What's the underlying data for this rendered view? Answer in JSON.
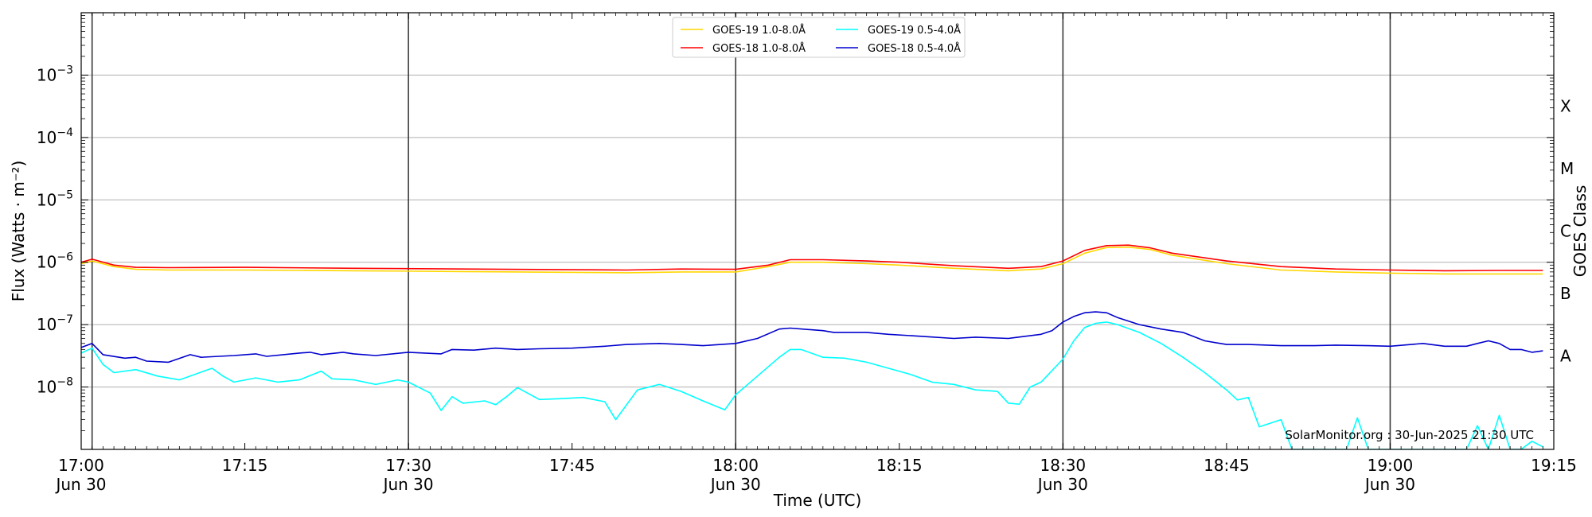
{
  "chart_data": {
    "type": "line",
    "title": "",
    "xlabel": "Time (UTC)",
    "ylabel": "Flux (Watts · m⁻²)",
    "y2label": "GOES Class",
    "yscale": "log",
    "xlim_minutes_after_17_00": [
      0,
      135
    ],
    "ylim": [
      1e-09,
      0.01
    ],
    "grid": "horizontal at decades",
    "legend_placement": "top-center",
    "x_ticks": [
      {
        "minute": 0,
        "label": "17:00",
        "sublabel": "Jun 30"
      },
      {
        "minute": 15,
        "label": "17:15",
        "sublabel": ""
      },
      {
        "minute": 30,
        "label": "17:30",
        "sublabel": "Jun 30"
      },
      {
        "minute": 45,
        "label": "17:45",
        "sublabel": ""
      },
      {
        "minute": 60,
        "label": "18:00",
        "sublabel": "Jun 30"
      },
      {
        "minute": 75,
        "label": "18:15",
        "sublabel": ""
      },
      {
        "minute": 90,
        "label": "18:30",
        "sublabel": "Jun 30"
      },
      {
        "minute": 105,
        "label": "18:45",
        "sublabel": ""
      },
      {
        "minute": 120,
        "label": "19:00",
        "sublabel": "Jun 30"
      },
      {
        "minute": 135,
        "label": "19:15",
        "sublabel": ""
      }
    ],
    "vertical_lines_minutes": [
      1,
      30,
      60,
      90,
      120
    ],
    "y_ticks": [
      {
        "exp": -8,
        "label_base": "10",
        "label_exp": "−8"
      },
      {
        "exp": -7,
        "label_base": "10",
        "label_exp": "−7"
      },
      {
        "exp": -6,
        "label_base": "10",
        "label_exp": "−6"
      },
      {
        "exp": -5,
        "label_base": "10",
        "label_exp": "−5"
      },
      {
        "exp": -4,
        "label_base": "10",
        "label_exp": "−4"
      },
      {
        "exp": -3,
        "label_base": "10",
        "label_exp": "−3"
      }
    ],
    "goes_classes": [
      {
        "label": "A",
        "exp": -7.5
      },
      {
        "label": "B",
        "exp": -6.5
      },
      {
        "label": "C",
        "exp": -5.5
      },
      {
        "label": "M",
        "exp": -4.5
      },
      {
        "label": "X",
        "exp": -3.5
      }
    ],
    "series": [
      {
        "name": "GOES-19 1.0-8.0Å",
        "color": "#ffd700",
        "points": [
          [
            0,
            9.5e-07
          ],
          [
            1,
            1.05e-06
          ],
          [
            3,
            8.5e-07
          ],
          [
            5,
            7.7e-07
          ],
          [
            8,
            7.5e-07
          ],
          [
            15,
            7.5e-07
          ],
          [
            25,
            7.3e-07
          ],
          [
            35,
            7.1e-07
          ],
          [
            45,
            6.9e-07
          ],
          [
            50,
            6.8e-07
          ],
          [
            55,
            7e-07
          ],
          [
            60,
            7e-07
          ],
          [
            63,
            8.5e-07
          ],
          [
            65,
            1e-06
          ],
          [
            68,
            1e-06
          ],
          [
            72,
            9.5e-07
          ],
          [
            75,
            9e-07
          ],
          [
            80,
            8e-07
          ],
          [
            85,
            7.3e-07
          ],
          [
            88,
            7.8e-07
          ],
          [
            90,
            9.5e-07
          ],
          [
            92,
            1.4e-06
          ],
          [
            94,
            1.72e-06
          ],
          [
            96,
            1.75e-06
          ],
          [
            98,
            1.6e-06
          ],
          [
            100,
            1.3e-06
          ],
          [
            105,
            9.5e-07
          ],
          [
            110,
            7.5e-07
          ],
          [
            115,
            7e-07
          ],
          [
            120,
            6.7e-07
          ],
          [
            125,
            6.5e-07
          ],
          [
            130,
            6.5e-07
          ],
          [
            134,
            6.5e-07
          ]
        ]
      },
      {
        "name": "GOES-18 1.0-8.0Å",
        "color": "#ff0000",
        "points": [
          [
            0,
            1e-06
          ],
          [
            1,
            1.12e-06
          ],
          [
            3,
            9e-07
          ],
          [
            5,
            8.3e-07
          ],
          [
            8,
            8.2e-07
          ],
          [
            15,
            8.3e-07
          ],
          [
            25,
            8e-07
          ],
          [
            35,
            7.8e-07
          ],
          [
            45,
            7.6e-07
          ],
          [
            50,
            7.5e-07
          ],
          [
            55,
            7.8e-07
          ],
          [
            60,
            7.7e-07
          ],
          [
            63,
            9e-07
          ],
          [
            65,
            1.1e-06
          ],
          [
            68,
            1.1e-06
          ],
          [
            72,
            1.05e-06
          ],
          [
            75,
            1e-06
          ],
          [
            80,
            8.8e-07
          ],
          [
            85,
            8e-07
          ],
          [
            88,
            8.5e-07
          ],
          [
            90,
            1.05e-06
          ],
          [
            92,
            1.55e-06
          ],
          [
            94,
            1.85e-06
          ],
          [
            96,
            1.88e-06
          ],
          [
            98,
            1.7e-06
          ],
          [
            100,
            1.4e-06
          ],
          [
            105,
            1.05e-06
          ],
          [
            110,
            8.5e-07
          ],
          [
            115,
            7.8e-07
          ],
          [
            120,
            7.5e-07
          ],
          [
            125,
            7.3e-07
          ],
          [
            130,
            7.4e-07
          ],
          [
            134,
            7.4e-07
          ]
        ]
      },
      {
        "name": "GOES-19 0.5-4.0Å",
        "color": "#00ffff",
        "points": [
          [
            0,
            3.5e-08
          ],
          [
            1,
            4.2e-08
          ],
          [
            2,
            2.3e-08
          ],
          [
            3,
            1.7e-08
          ],
          [
            5,
            1.9e-08
          ],
          [
            7,
            1.5e-08
          ],
          [
            9,
            1.3e-08
          ],
          [
            12,
            2e-08
          ],
          [
            13,
            1.5e-08
          ],
          [
            14,
            1.2e-08
          ],
          [
            16,
            1.4e-08
          ],
          [
            18,
            1.2e-08
          ],
          [
            20,
            1.3e-08
          ],
          [
            22,
            1.8e-08
          ],
          [
            23,
            1.35e-08
          ],
          [
            25,
            1.3e-08
          ],
          [
            27,
            1.1e-08
          ],
          [
            29,
            1.3e-08
          ],
          [
            30,
            1.2e-08
          ],
          [
            32,
            8e-09
          ],
          [
            33,
            4.2e-09
          ],
          [
            34,
            7e-09
          ],
          [
            35,
            5.5e-09
          ],
          [
            37,
            6e-09
          ],
          [
            38,
            5.2e-09
          ],
          [
            39,
            7e-09
          ],
          [
            40,
            9.8e-09
          ],
          [
            42,
            6.3e-09
          ],
          [
            44,
            6.5e-09
          ],
          [
            46,
            6.8e-09
          ],
          [
            48,
            5.8e-09
          ],
          [
            49,
            3e-09
          ],
          [
            51,
            9e-09
          ],
          [
            53,
            1.1e-08
          ],
          [
            55,
            8.5e-09
          ],
          [
            57,
            6e-09
          ],
          [
            59,
            4.3e-09
          ],
          [
            60,
            7.5e-09
          ],
          [
            62,
            1.5e-08
          ],
          [
            64,
            3e-08
          ],
          [
            65,
            4e-08
          ],
          [
            66,
            4e-08
          ],
          [
            68,
            3e-08
          ],
          [
            70,
            2.9e-08
          ],
          [
            72,
            2.5e-08
          ],
          [
            74,
            2e-08
          ],
          [
            76,
            1.6e-08
          ],
          [
            78,
            1.2e-08
          ],
          [
            80,
            1.1e-08
          ],
          [
            82,
            9e-09
          ],
          [
            84,
            8.5e-09
          ],
          [
            85,
            5.5e-09
          ],
          [
            86,
            5.3e-09
          ],
          [
            87,
            1e-08
          ],
          [
            88,
            1.2e-08
          ],
          [
            90,
            2.8e-08
          ],
          [
            91,
            5.5e-08
          ],
          [
            92,
            9e-08
          ],
          [
            93,
            1.05e-07
          ],
          [
            94,
            1.1e-07
          ],
          [
            95,
            1e-07
          ],
          [
            97,
            7.5e-08
          ],
          [
            99,
            5e-08
          ],
          [
            101,
            3e-08
          ],
          [
            103,
            1.7e-08
          ],
          [
            105,
            9e-09
          ],
          [
            106,
            6.2e-09
          ],
          [
            107,
            6.8e-09
          ],
          [
            108,
            2.3e-09
          ],
          [
            110,
            3e-09
          ],
          [
            111,
            1e-09
          ],
          [
            116,
            1e-09
          ],
          [
            117,
            3.2e-09
          ],
          [
            118,
            1e-09
          ],
          [
            127,
            1e-09
          ],
          [
            128,
            2.4e-09
          ],
          [
            129,
            1e-09
          ],
          [
            130,
            3.5e-09
          ],
          [
            131,
            1e-09
          ],
          [
            132,
            1e-09
          ],
          [
            133,
            1.35e-09
          ],
          [
            134,
            1.1e-09
          ]
        ]
      },
      {
        "name": "GOES-18 0.5-4.0Å",
        "color": "#0000cd",
        "points": [
          [
            0,
            4.3e-08
          ],
          [
            1,
            5e-08
          ],
          [
            2,
            3.3e-08
          ],
          [
            4,
            2.9e-08
          ],
          [
            5,
            3e-08
          ],
          [
            6,
            2.6e-08
          ],
          [
            8,
            2.5e-08
          ],
          [
            10,
            3.3e-08
          ],
          [
            11,
            3e-08
          ],
          [
            14,
            3.2e-08
          ],
          [
            16,
            3.4e-08
          ],
          [
            17,
            3.1e-08
          ],
          [
            20,
            3.5e-08
          ],
          [
            21,
            3.6e-08
          ],
          [
            22,
            3.3e-08
          ],
          [
            24,
            3.6e-08
          ],
          [
            25,
            3.4e-08
          ],
          [
            27,
            3.2e-08
          ],
          [
            30,
            3.6e-08
          ],
          [
            33,
            3.4e-08
          ],
          [
            34,
            4e-08
          ],
          [
            36,
            3.9e-08
          ],
          [
            38,
            4.2e-08
          ],
          [
            40,
            4e-08
          ],
          [
            42,
            4.1e-08
          ],
          [
            45,
            4.2e-08
          ],
          [
            48,
            4.5e-08
          ],
          [
            50,
            4.8e-08
          ],
          [
            53,
            5e-08
          ],
          [
            55,
            4.8e-08
          ],
          [
            57,
            4.6e-08
          ],
          [
            60,
            5e-08
          ],
          [
            62,
            6e-08
          ],
          [
            64,
            8.5e-08
          ],
          [
            65,
            8.8e-08
          ],
          [
            68,
            8e-08
          ],
          [
            69,
            7.5e-08
          ],
          [
            72,
            7.5e-08
          ],
          [
            74,
            7e-08
          ],
          [
            77,
            6.5e-08
          ],
          [
            80,
            6e-08
          ],
          [
            82,
            6.3e-08
          ],
          [
            85,
            6e-08
          ],
          [
            88,
            7e-08
          ],
          [
            89,
            8e-08
          ],
          [
            90,
            1.1e-07
          ],
          [
            91,
            1.35e-07
          ],
          [
            92,
            1.55e-07
          ],
          [
            93,
            1.6e-07
          ],
          [
            94,
            1.55e-07
          ],
          [
            95,
            1.3e-07
          ],
          [
            97,
            1e-07
          ],
          [
            99,
            8.5e-08
          ],
          [
            101,
            7.5e-08
          ],
          [
            103,
            5.5e-08
          ],
          [
            105,
            4.8e-08
          ],
          [
            107,
            4.8e-08
          ],
          [
            110,
            4.6e-08
          ],
          [
            113,
            4.6e-08
          ],
          [
            115,
            4.7e-08
          ],
          [
            118,
            4.6e-08
          ],
          [
            120,
            4.5e-08
          ],
          [
            123,
            5e-08
          ],
          [
            125,
            4.5e-08
          ],
          [
            127,
            4.5e-08
          ],
          [
            128,
            5e-08
          ],
          [
            129,
            5.5e-08
          ],
          [
            130,
            5e-08
          ],
          [
            131,
            4e-08
          ],
          [
            132,
            4e-08
          ],
          [
            133,
            3.6e-08
          ],
          [
            134,
            3.8e-08
          ]
        ]
      }
    ],
    "annotation": "SolarMonitor.org : 30-Jun-2025 21:30 UTC"
  }
}
